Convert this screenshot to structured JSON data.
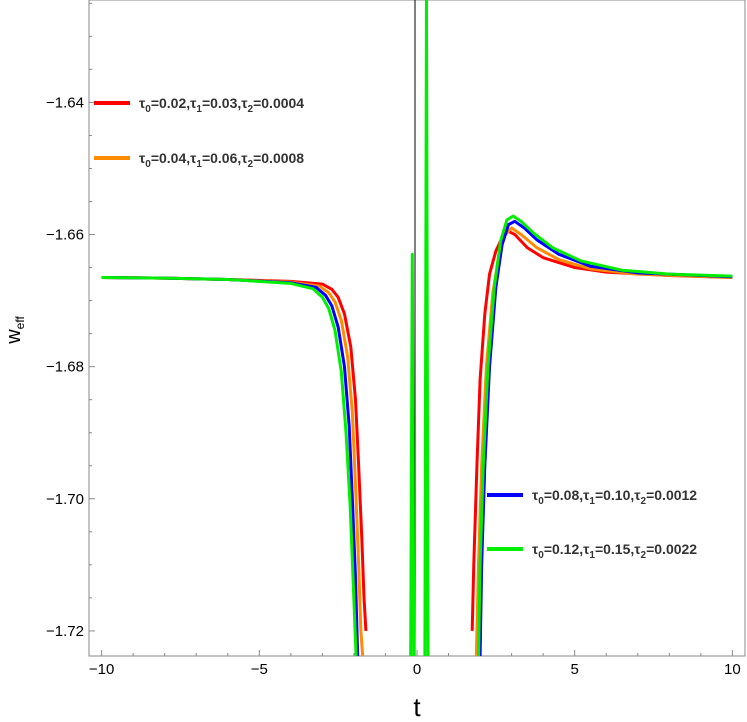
{
  "chart_data": {
    "type": "line",
    "xlabel": "t",
    "ylabel": "w",
    "ylabel_sub": "eff",
    "xlim": [
      -10.4,
      10.4
    ],
    "ylim": [
      -1.7238,
      -1.6245
    ],
    "xticks": [
      {
        "value": -10,
        "label": "−10"
      },
      {
        "value": -5,
        "label": "−5"
      },
      {
        "value": 0,
        "label": "0"
      },
      {
        "value": 5,
        "label": "5"
      },
      {
        "value": 10,
        "label": "10"
      }
    ],
    "yticks": [
      {
        "value": -1.64,
        "label": "−1.64"
      },
      {
        "value": -1.66,
        "label": "−1.66"
      },
      {
        "value": -1.68,
        "label": "−1.68"
      },
      {
        "value": -1.7,
        "label": "−1.70"
      },
      {
        "value": -1.72,
        "label": "−1.72"
      }
    ],
    "grid": false,
    "legend_groups": [
      {
        "placement": "top-left",
        "entries": [
          0,
          1
        ]
      },
      {
        "placement": "bottom-right",
        "entries": [
          2,
          3
        ]
      }
    ],
    "series": [
      {
        "name": "τ0=0.02,τ1=0.03,τ2=0.0004",
        "legend_parts": [
          [
            "τ",
            "0",
            "=0.02,"
          ],
          [
            "τ",
            "1",
            "=0.03,"
          ],
          [
            "τ",
            "2",
            "=0.0004"
          ]
        ],
        "color": "#ff0000",
        "segments": [
          [
            [
              -10,
              -1.6665
            ],
            [
              -8,
              -1.6666
            ],
            [
              -6,
              -1.6668
            ],
            [
              -4,
              -1.6671
            ],
            [
              -3,
              -1.6675
            ],
            [
              -2.7,
              -1.6683
            ],
            [
              -2.5,
              -1.6695
            ],
            [
              -2.3,
              -1.672
            ],
            [
              -2.1,
              -1.677
            ],
            [
              -1.95,
              -1.685
            ],
            [
              -1.85,
              -1.695
            ],
            [
              -1.75,
              -1.706
            ],
            [
              -1.68,
              -1.715
            ],
            [
              -1.62,
              -1.72
            ]
          ],
          [
            [
              1.75,
              -1.72
            ],
            [
              1.8,
              -1.71
            ],
            [
              1.9,
              -1.695
            ],
            [
              2.0,
              -1.682
            ],
            [
              2.15,
              -1.672
            ],
            [
              2.3,
              -1.666
            ],
            [
              2.5,
              -1.6625
            ],
            [
              2.7,
              -1.6605
            ],
            [
              2.9,
              -1.6595
            ],
            [
              3.1,
              -1.66
            ],
            [
              3.5,
              -1.662
            ],
            [
              4,
              -1.6635
            ],
            [
              5,
              -1.665
            ],
            [
              6,
              -1.6657
            ],
            [
              8,
              -1.6662
            ],
            [
              10,
              -1.6665
            ]
          ]
        ]
      },
      {
        "name": "τ0=0.04,τ1=0.06,τ2=0.0008",
        "legend_parts": [
          [
            "τ",
            "0",
            "=0.04,"
          ],
          [
            "τ",
            "1",
            "=0.06,"
          ],
          [
            "τ",
            "2",
            "=0.0008"
          ]
        ],
        "color": "#ff8c00",
        "segments": [
          [
            [
              -10,
              -1.6665
            ],
            [
              -8,
              -1.6666
            ],
            [
              -6,
              -1.6668
            ],
            [
              -4,
              -1.6672
            ],
            [
              -3.1,
              -1.6678
            ],
            [
              -2.8,
              -1.6688
            ],
            [
              -2.6,
              -1.6702
            ],
            [
              -2.4,
              -1.673
            ],
            [
              -2.2,
              -1.6785
            ],
            [
              -2.05,
              -1.687
            ],
            [
              -1.95,
              -1.698
            ],
            [
              -1.85,
              -1.71
            ],
            [
              -1.78,
              -1.72
            ],
            [
              -1.72,
              -1.724
            ]
          ],
          [
            [
              1.88,
              -1.724
            ],
            [
              1.95,
              -1.71
            ],
            [
              2.05,
              -1.695
            ],
            [
              2.2,
              -1.68
            ],
            [
              2.4,
              -1.669
            ],
            [
              2.6,
              -1.663
            ],
            [
              2.8,
              -1.66
            ],
            [
              3.0,
              -1.659
            ],
            [
              3.3,
              -1.66
            ],
            [
              3.8,
              -1.662
            ],
            [
              4.5,
              -1.6638
            ],
            [
              5.5,
              -1.6652
            ],
            [
              7,
              -1.666
            ],
            [
              10,
              -1.6665
            ]
          ]
        ]
      },
      {
        "name": "τ0=0.08,τ1=0.10,τ2=0.0012",
        "legend_parts": [
          [
            "τ",
            "0",
            "=0.08,"
          ],
          [
            "τ",
            "1",
            "=0.10,"
          ],
          [
            "τ",
            "2",
            "=0.0012"
          ]
        ],
        "color": "#0000ff",
        "segments": [
          [
            [
              -10,
              -1.6665
            ],
            [
              -8,
              -1.6666
            ],
            [
              -6,
              -1.6668
            ],
            [
              -4,
              -1.6673
            ],
            [
              -3.2,
              -1.668
            ],
            [
              -2.9,
              -1.6692
            ],
            [
              -2.7,
              -1.6708
            ],
            [
              -2.5,
              -1.674
            ],
            [
              -2.3,
              -1.68
            ],
            [
              -2.15,
              -1.689
            ],
            [
              -2.05,
              -1.7
            ],
            [
              -1.95,
              -1.712
            ],
            [
              -1.88,
              -1.724
            ]
          ],
          [
            [
              2.0,
              -1.724
            ],
            [
              2.05,
              -1.71
            ],
            [
              2.15,
              -1.695
            ],
            [
              2.3,
              -1.68
            ],
            [
              2.5,
              -1.668
            ],
            [
              2.7,
              -1.6615
            ],
            [
              2.9,
              -1.6585
            ],
            [
              3.1,
              -1.658
            ],
            [
              3.4,
              -1.659
            ],
            [
              3.8,
              -1.6608
            ],
            [
              4.5,
              -1.663
            ],
            [
              5.5,
              -1.6648
            ],
            [
              7,
              -1.6658
            ],
            [
              10,
              -1.6664
            ]
          ]
        ]
      },
      {
        "name": "τ0=0.12,τ1=0.15,τ2=0.0022",
        "legend_parts": [
          [
            "τ",
            "0",
            "=0.12,"
          ],
          [
            "τ",
            "1",
            "=0.15,"
          ],
          [
            "τ",
            "2",
            "=0.0022"
          ]
        ],
        "color": "#00ee00",
        "segments": [
          [
            [
              -10,
              -1.6665
            ],
            [
              -8,
              -1.6666
            ],
            [
              -6,
              -1.6668
            ],
            [
              -4,
              -1.6674
            ],
            [
              -3.3,
              -1.6682
            ],
            [
              -3.0,
              -1.6695
            ],
            [
              -2.8,
              -1.6712
            ],
            [
              -2.6,
              -1.6745
            ],
            [
              -2.4,
              -1.6808
            ],
            [
              -2.25,
              -1.69
            ],
            [
              -2.12,
              -1.701
            ],
            [
              -2.02,
              -1.713
            ],
            [
              -1.93,
              -1.724
            ]
          ],
          [
            [
              -0.2,
              -1.724
            ],
            [
              -0.15,
              -1.663
            ],
            [
              -0.1,
              -1.724
            ]
          ],
          [
            [
              0.25,
              -1.724
            ],
            [
              0.3,
              -1.6245
            ],
            [
              0.35,
              -1.724
            ]
          ],
          [
            [
              1.95,
              -1.724
            ],
            [
              2.0,
              -1.71
            ],
            [
              2.1,
              -1.695
            ],
            [
              2.25,
              -1.68
            ],
            [
              2.45,
              -1.668
            ],
            [
              2.65,
              -1.661
            ],
            [
              2.85,
              -1.6578
            ],
            [
              3.05,
              -1.6572
            ],
            [
              3.3,
              -1.658
            ],
            [
              3.7,
              -1.6598
            ],
            [
              4.3,
              -1.662
            ],
            [
              5.2,
              -1.664
            ],
            [
              6.5,
              -1.6654
            ],
            [
              8,
              -1.666
            ],
            [
              10,
              -1.6663
            ]
          ]
        ]
      }
    ]
  }
}
